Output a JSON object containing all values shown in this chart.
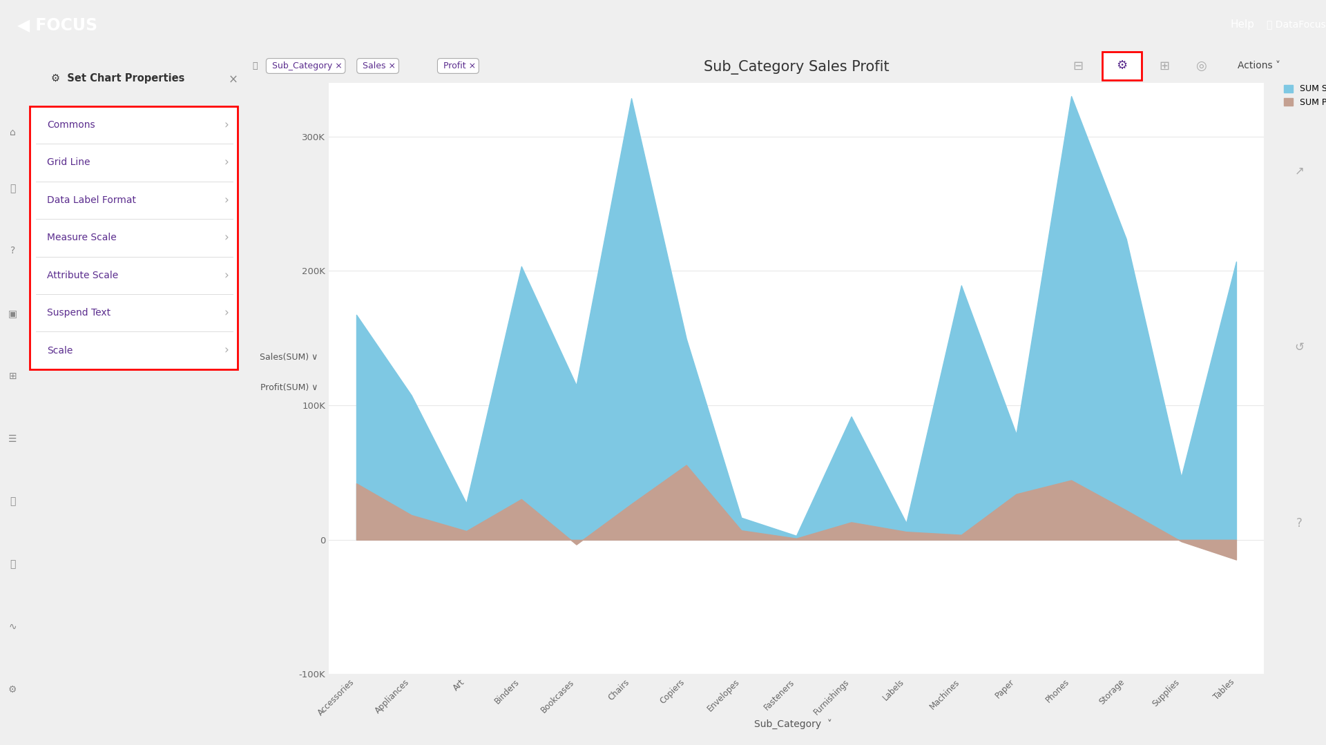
{
  "title": "Sub_Category Sales Profit",
  "categories": [
    "Accessories",
    "Appliances",
    "Art",
    "Binders",
    "Bookcases",
    "Chairs",
    "Copiers",
    "Envelopes",
    "Fasteners",
    "Furnishings",
    "Labels",
    "Machines",
    "Paper",
    "Phones",
    "Storage",
    "Supplies",
    "Tables"
  ],
  "sales": [
    167380,
    107532,
    27118,
    203413,
    114880,
    328449,
    149528,
    16476,
    3024,
    91705,
    12486,
    189238,
    78479,
    330007,
    223844,
    46674,
    206966
  ],
  "profit": [
    41937,
    18399,
    6527,
    30221,
    -3473,
    26590,
    55618,
    6994,
    1034,
    13059,
    5971,
    3655,
    34005,
    44310,
    21979,
    -1189,
    -14753
  ],
  "sales_color": "#7EC8E3",
  "profit_color": "#C4A091",
  "ylim_min": -100000,
  "ylim_max": 340000,
  "yticks": [
    -100000,
    0,
    100000,
    200000,
    300000
  ],
  "ytick_labels": [
    "-100K",
    "0",
    "100K",
    "200K",
    "300K"
  ],
  "xlabel": "Sub_Category",
  "legend_sales": "SUM Sales",
  "legend_profit": "SUM Profit",
  "grid_color": "#E8E8E8",
  "header_color": "#6B1FA2",
  "left_panel_items": [
    "Commons",
    "Grid Line",
    "Data Label Format",
    "Measure Scale",
    "Attribute Scale",
    "Suspend Text",
    "Scale"
  ],
  "filter_tags": [
    "Sub_Category",
    "Sales",
    "Profit"
  ],
  "left_axis_label_1": "Sales(SUM) ∨",
  "left_axis_label_2": "Profit(SUM) ∨"
}
